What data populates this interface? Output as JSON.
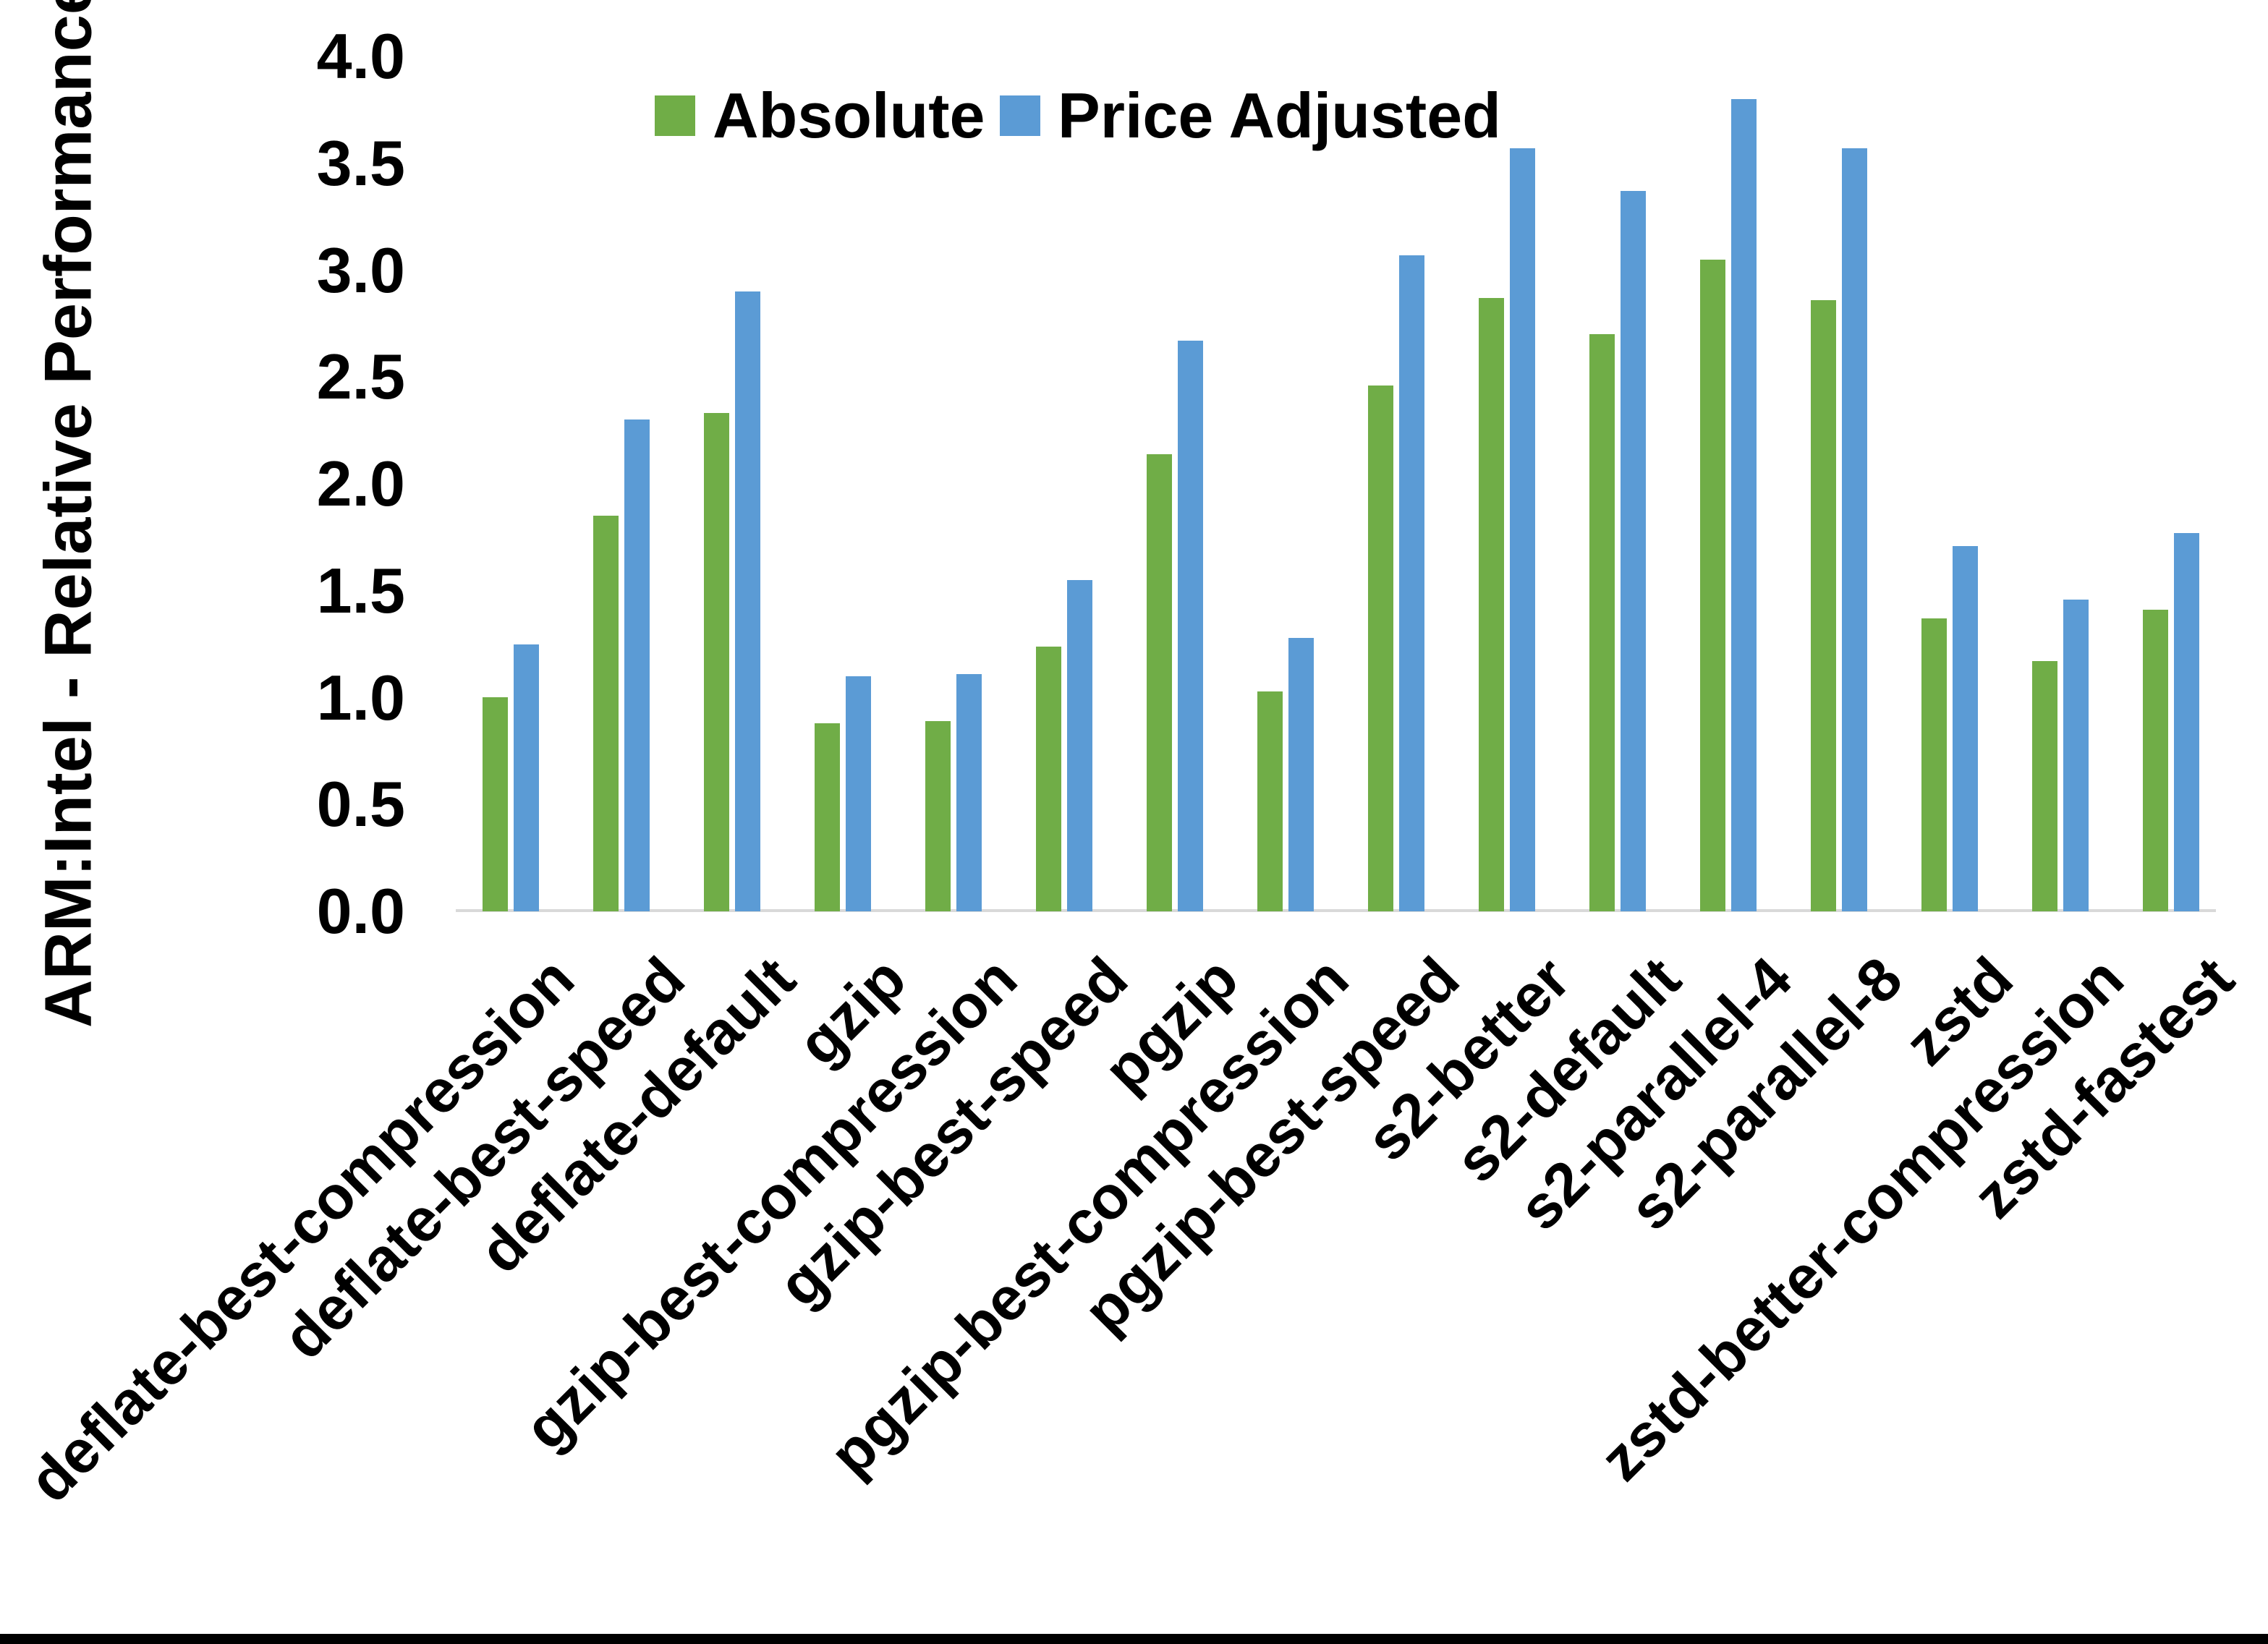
{
  "figure": {
    "background": "#ffffff",
    "bottom_border_color": "#000000"
  },
  "chart_data": {
    "type": "bar",
    "title": "",
    "xlabel": "",
    "ylabel": "ARM:Intel - Relative Performance",
    "ylim": [
      0.0,
      4.0
    ],
    "ytick_step": 0.5,
    "yticks": [
      "0.0",
      "0.5",
      "1.0",
      "1.5",
      "2.0",
      "2.5",
      "3.0",
      "3.5",
      "4.0"
    ],
    "grid": false,
    "legend_position": "top-center",
    "axis_line_color": "#D9D9D9",
    "categories": [
      "deflate-best-compression",
      "deflate-best-speed",
      "deflate-default",
      "gzip",
      "gzip-best-compression",
      "gzip-best-speed",
      "pgzip",
      "pgzip-best-compression",
      "pgzip-best-speed",
      "s2-better",
      "s2-default",
      "s2-parallel-4",
      "s2-parallel-8",
      "zstd",
      "zstd-better-compression",
      "zstd-fastest"
    ],
    "series": [
      {
        "name": "Absolute",
        "color": "#70AD47",
        "values": [
          1.0,
          1.85,
          2.33,
          0.88,
          0.89,
          1.24,
          2.14,
          1.03,
          2.46,
          2.87,
          2.7,
          3.05,
          2.86,
          1.37,
          1.17,
          1.41
        ]
      },
      {
        "name": "Price Adjusted",
        "color": "#5B9BD5",
        "values": [
          1.25,
          2.3,
          2.9,
          1.1,
          1.11,
          1.55,
          2.67,
          1.28,
          3.07,
          3.57,
          3.37,
          3.8,
          3.57,
          1.71,
          1.46,
          1.77
        ]
      }
    ]
  }
}
